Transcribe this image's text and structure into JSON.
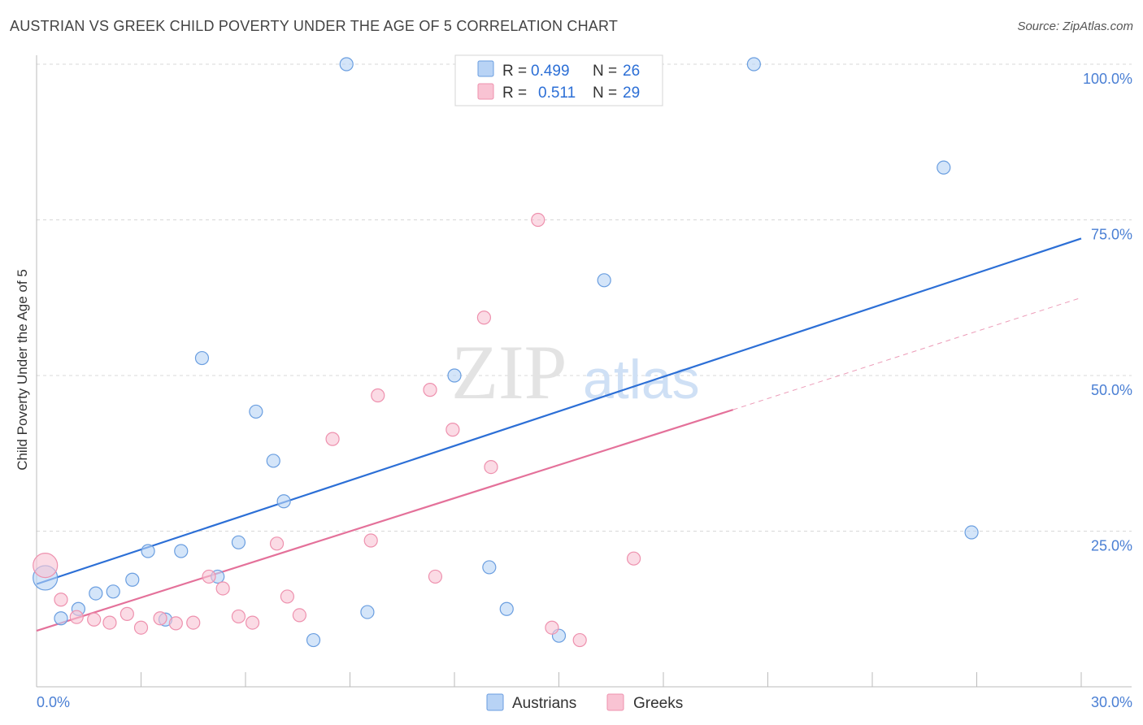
{
  "title": "AUSTRIAN VS GREEK CHILD POVERTY UNDER THE AGE OF 5 CORRELATION CHART",
  "source": "Source: ZipAtlas.com",
  "watermark": {
    "zip": "ZIP",
    "atlas": "atlas"
  },
  "colors": {
    "austrians_fill": "#b8d3f5",
    "austrians_stroke": "#6a9ee0",
    "austrians_line": "#2c6fd6",
    "greeks_fill": "#f9c3d3",
    "greeks_stroke": "#ee91ae",
    "greeks_line": "#e4719a",
    "grid": "#d8d8d8",
    "axis_text": "#4a7fd4"
  },
  "legend": {
    "rows": [
      {
        "r_label": "R =",
        "r_value": "0.499",
        "n_label": "N =",
        "n_value": "26"
      },
      {
        "r_label": "R =",
        "r_value": "0.511",
        "n_label": "N =",
        "n_value": "29"
      }
    ]
  },
  "chart_data": {
    "type": "scatter",
    "title": "AUSTRIAN VS GREEK CHILD POVERTY UNDER THE AGE OF 5 CORRELATION CHART",
    "xlabel": "",
    "ylabel": "Child Poverty Under the Age of 5",
    "xlim": [
      0,
      30
    ],
    "ylim": [
      0,
      100
    ],
    "x_tick_labels": {
      "min": "0.0%",
      "max": "30.0%"
    },
    "y_ticks": [
      {
        "value": 25,
        "label": "25.0%"
      },
      {
        "value": 50,
        "label": "50.0%"
      },
      {
        "value": 75,
        "label": "75.0%"
      },
      {
        "value": 100,
        "label": "100.0%"
      }
    ],
    "series": [
      {
        "name": "Austrians",
        "r": 0.499,
        "n": 26,
        "trend": {
          "x0": 0,
          "y0": 16.5,
          "x1": 30,
          "y1": 72.0,
          "dashed_to": null
        },
        "points": [
          {
            "x": 0.25,
            "y": 17.5,
            "big": true
          },
          {
            "x": 0.7,
            "y": 11.0
          },
          {
            "x": 1.2,
            "y": 12.5
          },
          {
            "x": 1.7,
            "y": 15.0
          },
          {
            "x": 2.2,
            "y": 15.3
          },
          {
            "x": 2.75,
            "y": 17.2
          },
          {
            "x": 3.2,
            "y": 21.8
          },
          {
            "x": 3.7,
            "y": 10.8
          },
          {
            "x": 4.15,
            "y": 21.8
          },
          {
            "x": 4.75,
            "y": 52.8
          },
          {
            "x": 5.2,
            "y": 17.7
          },
          {
            "x": 5.8,
            "y": 23.2
          },
          {
            "x": 6.3,
            "y": 44.2
          },
          {
            "x": 6.8,
            "y": 36.3
          },
          {
            "x": 7.1,
            "y": 29.8
          },
          {
            "x": 7.95,
            "y": 7.5
          },
          {
            "x": 8.9,
            "y": 100.0
          },
          {
            "x": 9.5,
            "y": 12.0
          },
          {
            "x": 12.0,
            "y": 50.0
          },
          {
            "x": 13.0,
            "y": 19.2
          },
          {
            "x": 13.5,
            "y": 12.5
          },
          {
            "x": 15.0,
            "y": 8.2
          },
          {
            "x": 16.3,
            "y": 65.3
          },
          {
            "x": 20.6,
            "y": 100.0
          },
          {
            "x": 26.05,
            "y": 83.4
          },
          {
            "x": 26.85,
            "y": 24.8
          }
        ]
      },
      {
        "name": "Greeks",
        "r": 0.511,
        "n": 29,
        "trend": {
          "x0": 0,
          "y0": 9.0,
          "x1": 20.0,
          "y1": 44.5,
          "dashed_to": {
            "x": 30,
            "y": 62.5
          }
        },
        "points": [
          {
            "x": 0.25,
            "y": 19.5,
            "big": true
          },
          {
            "x": 0.7,
            "y": 14.0
          },
          {
            "x": 1.15,
            "y": 11.2
          },
          {
            "x": 1.65,
            "y": 10.8
          },
          {
            "x": 2.1,
            "y": 10.3
          },
          {
            "x": 2.6,
            "y": 11.7
          },
          {
            "x": 3.0,
            "y": 9.5
          },
          {
            "x": 3.55,
            "y": 11.0
          },
          {
            "x": 4.0,
            "y": 10.2
          },
          {
            "x": 4.5,
            "y": 10.3
          },
          {
            "x": 4.95,
            "y": 17.7
          },
          {
            "x": 5.35,
            "y": 15.8
          },
          {
            "x": 5.8,
            "y": 11.3
          },
          {
            "x": 6.2,
            "y": 10.3
          },
          {
            "x": 6.9,
            "y": 23.0
          },
          {
            "x": 7.2,
            "y": 14.5
          },
          {
            "x": 7.55,
            "y": 11.5
          },
          {
            "x": 8.5,
            "y": 39.8
          },
          {
            "x": 9.6,
            "y": 23.5
          },
          {
            "x": 9.8,
            "y": 46.8
          },
          {
            "x": 11.3,
            "y": 47.7
          },
          {
            "x": 11.45,
            "y": 17.7
          },
          {
            "x": 11.95,
            "y": 41.3
          },
          {
            "x": 12.85,
            "y": 59.3
          },
          {
            "x": 13.05,
            "y": 35.3
          },
          {
            "x": 14.4,
            "y": 75.0
          },
          {
            "x": 14.8,
            "y": 9.5
          },
          {
            "x": 15.6,
            "y": 7.5
          },
          {
            "x": 17.15,
            "y": 20.6
          }
        ]
      }
    ]
  }
}
